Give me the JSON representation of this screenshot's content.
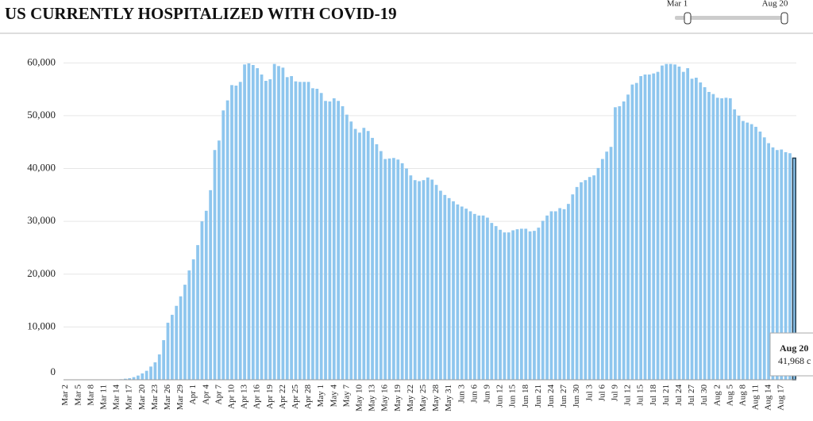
{
  "chart_data": {
    "type": "bar",
    "title": "US CURRENTLY HOSPITALIZED WITH COVID-19",
    "range_slider": {
      "start": "Mar 1",
      "end": "Aug 20"
    },
    "tooltip": {
      "title": "Aug 20",
      "text": "41,968 c"
    },
    "color": "#8ec6ee",
    "highlight_color": "#1f3a4d",
    "grid": true,
    "ylim": [
      0,
      62000
    ],
    "yticks": [
      0,
      {
        "value": 10000,
        "label": "10,000"
      },
      {
        "value": 20000,
        "label": "20,000"
      },
      {
        "value": 30000,
        "label": "30,000"
      },
      {
        "value": 40000,
        "label": "40,000"
      },
      {
        "value": 50000,
        "label": "50,000"
      },
      {
        "value": 60000,
        "label": "60,000"
      }
    ],
    "categories": [
      "Mar 2",
      null,
      null,
      "Mar 5",
      null,
      null,
      "Mar 8",
      null,
      null,
      "Mar 11",
      null,
      null,
      "Mar 14",
      null,
      null,
      "Mar 17",
      null,
      null,
      "Mar 20",
      null,
      null,
      "Mar 23",
      null,
      null,
      "Mar 26",
      null,
      null,
      "Mar 29",
      null,
      null,
      "Apr 1",
      null,
      null,
      "Apr 4",
      null,
      null,
      "Apr 7",
      null,
      null,
      "Apr 10",
      null,
      null,
      "Apr 13",
      null,
      null,
      "Apr 16",
      null,
      null,
      "Apr 19",
      null,
      null,
      "Apr 22",
      null,
      null,
      "Apr 25",
      null,
      null,
      "Apr 28",
      null,
      null,
      "May 1",
      null,
      null,
      "May 4",
      null,
      null,
      "May 7",
      null,
      null,
      "May 10",
      null,
      null,
      "May 13",
      null,
      null,
      "May 16",
      null,
      null,
      "May 19",
      null,
      null,
      "May 22",
      null,
      null,
      "May 25",
      null,
      null,
      "May 28",
      null,
      null,
      "May 31",
      null,
      null,
      "Jun 3",
      null,
      null,
      "Jun 6",
      null,
      null,
      "Jun 9",
      null,
      null,
      "Jun 12",
      null,
      null,
      "Jun 15",
      null,
      null,
      "Jun 18",
      null,
      null,
      "Jun 21",
      null,
      null,
      "Jun 24",
      null,
      null,
      "Jun 27",
      null,
      null,
      "Jun 30",
      null,
      null,
      "Jul 3",
      null,
      null,
      "Jul 6",
      null,
      null,
      "Jul 9",
      null,
      null,
      "Jul 12",
      null,
      null,
      "Jul 15",
      null,
      null,
      "Jul 18",
      null,
      null,
      "Jul 21",
      null,
      null,
      "Jul 24",
      null,
      null,
      "Jul 27",
      null,
      null,
      "Jul 30",
      null,
      null,
      "Aug 2",
      null,
      null,
      "Aug 5",
      null,
      null,
      "Aug 8",
      null,
      null,
      "Aug 11",
      null,
      null,
      "Aug 14",
      null,
      null,
      "Aug 17",
      null,
      null,
      null
    ],
    "values": [
      0,
      0,
      0,
      0,
      0,
      0,
      0,
      0,
      0,
      0,
      0,
      0,
      0,
      100,
      200,
      300,
      500,
      800,
      1200,
      1700,
      2500,
      3300,
      4800,
      7500,
      10800,
      12300,
      14000,
      15800,
      18000,
      20700,
      22800,
      25500,
      30000,
      32000,
      35900,
      43500,
      45300,
      51000,
      52900,
      55800,
      55700,
      56400,
      59700,
      59900,
      59600,
      59000,
      57800,
      56600,
      56900,
      59800,
      59400,
      59100,
      57300,
      57500,
      56500,
      56400,
      56400,
      56400,
      55200,
      55100,
      54300,
      52800,
      52700,
      53300,
      52800,
      51800,
      50200,
      48900,
      47500,
      46800,
      47700,
      47100,
      45800,
      44600,
      43300,
      41800,
      41900,
      42000,
      41700,
      41000,
      40000,
      38700,
      37800,
      37600,
      37800,
      38300,
      37900,
      36900,
      35800,
      35000,
      34400,
      33800,
      33200,
      32800,
      32400,
      31900,
      31400,
      31100,
      31100,
      30700,
      29700,
      29100,
      28400,
      27900,
      27900,
      28300,
      28500,
      28600,
      28600,
      28100,
      28200,
      28800,
      30100,
      31100,
      31900,
      31900,
      32500,
      32300,
      33300,
      35100,
      36500,
      37400,
      37800,
      38400,
      38700,
      40100,
      41800,
      43200,
      44100,
      51600,
      51800,
      52700,
      54000,
      55900,
      56200,
      57500,
      57800,
      57800,
      58000,
      58300,
      59500,
      59800,
      59800,
      59700,
      59300,
      58300,
      59000,
      57000,
      57200,
      56300,
      55400,
      54500,
      54100,
      53400,
      53300,
      53400,
      53300,
      51200,
      50000,
      49000,
      48700,
      48400,
      47900,
      47000,
      45900,
      44800,
      44000,
      43500,
      43600,
      43100,
      42900,
      41968
    ]
  }
}
